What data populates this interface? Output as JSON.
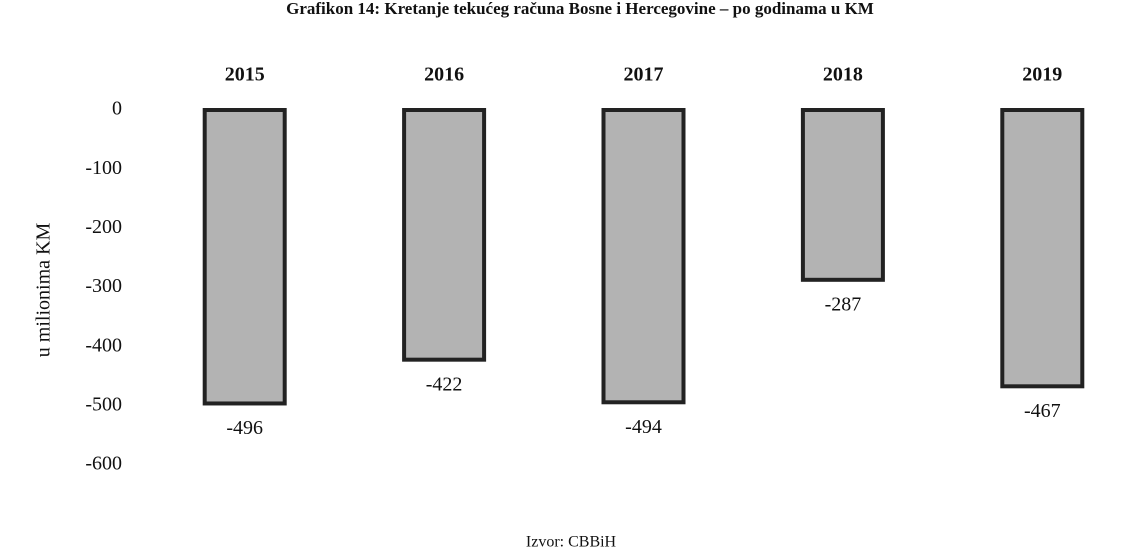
{
  "chart_data": {
    "type": "bar",
    "title": "Grafikon 14: Kretanje tekućeg računa Bosne i Hercegovine – po godinama u KM",
    "y_label": "u milionima KM",
    "source": "Izvor: CBBiH",
    "categories": [
      "2015",
      "2016",
      "2017",
      "2018",
      "2019"
    ],
    "values": [
      -496,
      -422,
      -494,
      -287,
      -467
    ],
    "color": "#b3b3b3",
    "ylim": [
      -600,
      0
    ],
    "yticks": [
      0,
      -100,
      -200,
      -300,
      -400,
      -500,
      -600
    ],
    "grid": false
  }
}
